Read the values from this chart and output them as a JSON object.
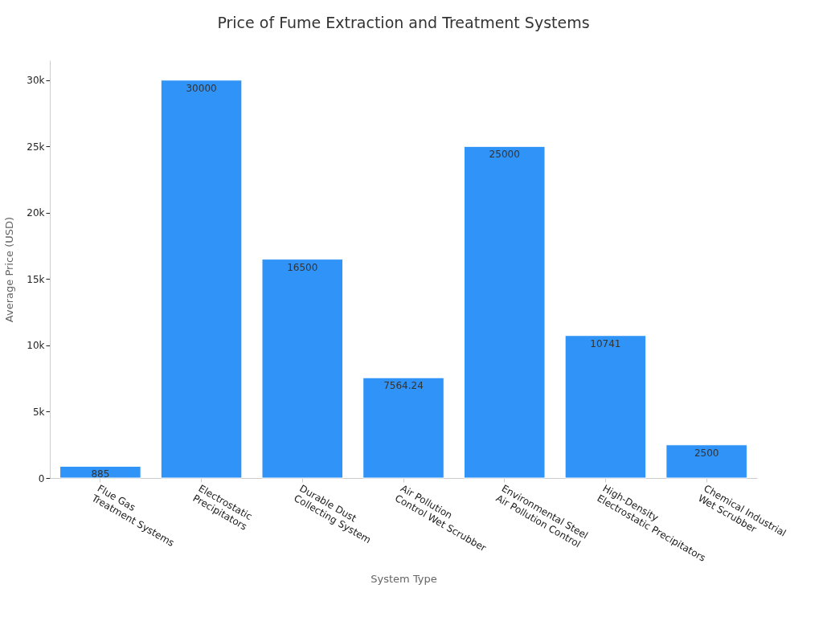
{
  "chart_data": {
    "type": "bar",
    "title": "Price of Fume Extraction and Treatment Systems",
    "xlabel": "System Type",
    "ylabel": "Average Price (USD)",
    "categories": [
      "Flue Gas\nTreatment Systems",
      "Electrostatic\nPrecipitators",
      "Durable Dust\nCollecting System",
      "Air Pollution\nControl Wet Scrubber",
      "Environmental Steel\nAir Pollution Control",
      "High-Density\nElectrostatic Precipitators",
      "Chemical Industrial\nWet Scrubber"
    ],
    "values": [
      885,
      30000,
      16500,
      7564.24,
      25000,
      10741,
      2500
    ],
    "color": "#2f93f7",
    "data_labels": true,
    "grid": false,
    "ylim": [
      0,
      31500
    ],
    "yticks": [
      0,
      {
        "value": 5000,
        "label": "5k"
      },
      {
        "value": 10000,
        "label": "10k"
      },
      {
        "value": 15000,
        "label": "15k"
      },
      {
        "value": 20000,
        "label": "20k"
      },
      {
        "value": 25000,
        "label": "25k"
      },
      {
        "value": 30000,
        "label": "30k"
      }
    ]
  }
}
